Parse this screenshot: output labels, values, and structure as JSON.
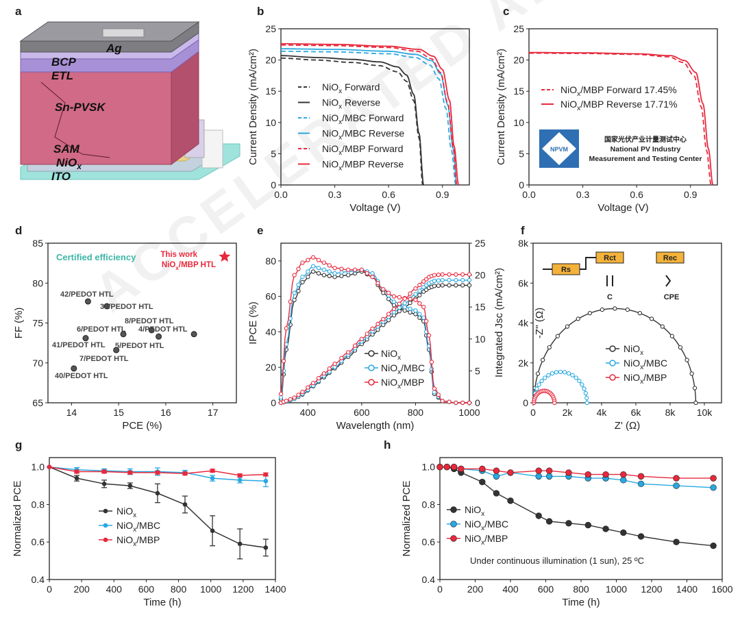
{
  "watermark": "ACCELERATED ARTICLE PREVIEW",
  "colors": {
    "black": "#333333",
    "blue": "#29a8e0",
    "red": "#e8283c",
    "teal": "#3db6a6"
  },
  "panel_a": {
    "letter": "a",
    "layers": [
      "Ag",
      "BCP",
      "ETL",
      "Sn-PVSK",
      "SAM",
      "NiOx",
      "ITO"
    ]
  },
  "cert_logo": {
    "badge": "NPVM",
    "cn": "国家光伏产业计量测试中心",
    "line1": "National PV Industry",
    "line2": "Measurement and Testing Center"
  },
  "circuit": {
    "r1": "Rs",
    "r2": "Rct",
    "r3": "Rec",
    "c1": "C",
    "c2": "CPE"
  },
  "chart_data": [
    {
      "id": "b",
      "type": "line",
      "title": "",
      "xlabel": "Voltage (V)",
      "ylabel": "Current Density (mA/cm²)",
      "xlim": [
        0,
        1.05
      ],
      "ylim": [
        0,
        25
      ],
      "xticks": [
        "0.0",
        "0.3",
        "0.6",
        "0.9"
      ],
      "yticks": [
        "0",
        "5",
        "10",
        "15",
        "20",
        "25"
      ],
      "legend_position": "center-left",
      "series": [
        {
          "name": "NiOx Forward",
          "color": "#333333",
          "dash": true,
          "x": [
            0,
            0.2,
            0.4,
            0.55,
            0.65,
            0.7,
            0.74,
            0.77,
            0.79
          ],
          "y": [
            20.3,
            20.0,
            19.6,
            19.1,
            18.1,
            16.6,
            13.5,
            7.5,
            0
          ]
        },
        {
          "name": "NiOx Reverse",
          "color": "#333333",
          "dash": false,
          "x": [
            0,
            0.2,
            0.4,
            0.55,
            0.65,
            0.7,
            0.74,
            0.77,
            0.795
          ],
          "y": [
            20.7,
            20.4,
            20.1,
            19.7,
            18.9,
            17.6,
            14.5,
            8.2,
            0
          ]
        },
        {
          "name": "NiOx/MBC Forward",
          "color": "#29a8e0",
          "dash": true,
          "x": [
            0,
            0.3,
            0.6,
            0.75,
            0.83,
            0.88,
            0.92,
            0.95,
            0.975
          ],
          "y": [
            21.4,
            21.3,
            21.0,
            20.4,
            19.2,
            17.0,
            12.2,
            5.6,
            0
          ]
        },
        {
          "name": "NiOx/MBC Reverse",
          "color": "#29a8e0",
          "dash": false,
          "x": [
            0,
            0.3,
            0.6,
            0.75,
            0.84,
            0.89,
            0.93,
            0.96,
            0.98
          ],
          "y": [
            21.8,
            21.7,
            21.4,
            20.9,
            19.9,
            17.8,
            12.8,
            5.8,
            0
          ]
        },
        {
          "name": "NiOx/MBP Forward",
          "color": "#e8283c",
          "dash": true,
          "x": [
            0,
            0.3,
            0.6,
            0.76,
            0.84,
            0.89,
            0.93,
            0.96,
            0.98
          ],
          "y": [
            22.4,
            22.3,
            22.0,
            21.4,
            20.2,
            18.0,
            13.0,
            6.0,
            0
          ]
        },
        {
          "name": "NiOx/MBP Reverse",
          "color": "#e8283c",
          "dash": false,
          "x": [
            0,
            0.3,
            0.6,
            0.77,
            0.85,
            0.9,
            0.94,
            0.965,
            0.99
          ],
          "y": [
            22.6,
            22.5,
            22.2,
            21.7,
            20.6,
            18.5,
            13.5,
            6.2,
            0
          ]
        }
      ]
    },
    {
      "id": "c",
      "type": "line",
      "title": "",
      "xlabel": "Voltage (V)",
      "ylabel": "Current Density (mA/cm²)",
      "xlim": [
        0,
        1.05
      ],
      "ylim": [
        0,
        25
      ],
      "xticks": [
        "0.0",
        "0.3",
        "0.6",
        "0.9"
      ],
      "yticks": [
        "0",
        "5",
        "10",
        "15",
        "20",
        "25"
      ],
      "legend_position": "center-left",
      "series": [
        {
          "name": "NiOx/MBP Forward 17.45%",
          "color": "#e8283c",
          "dash": true,
          "x": [
            0,
            0.3,
            0.6,
            0.78,
            0.86,
            0.92,
            0.96,
            0.99,
            1.015
          ],
          "y": [
            21.1,
            21.05,
            20.9,
            20.5,
            19.6,
            17.5,
            12.5,
            5.5,
            0
          ]
        },
        {
          "name": "NiOx/MBP Reverse 17.71%",
          "color": "#e8283c",
          "dash": false,
          "x": [
            0,
            0.3,
            0.6,
            0.79,
            0.87,
            0.93,
            0.97,
            1.0,
            1.025
          ],
          "y": [
            21.2,
            21.15,
            21.0,
            20.7,
            19.9,
            18.0,
            13.0,
            5.8,
            0
          ]
        }
      ]
    },
    {
      "id": "d",
      "type": "scatter",
      "title": "",
      "xlabel": "PCE (%)",
      "ylabel": "FF (%)",
      "xlim": [
        13.5,
        17.5
      ],
      "ylim": [
        65,
        85
      ],
      "xticks": [
        "14",
        "15",
        "16",
        "17"
      ],
      "yticks": [
        "65",
        "70",
        "75",
        "80",
        "85"
      ],
      "annotation": "Certified efficiency",
      "points": [
        {
          "x": 14.35,
          "y": 77.7,
          "label": "42/PEDOT HTL"
        },
        {
          "x": 14.75,
          "y": 77.1,
          "label": "39/PEDOT HTL"
        },
        {
          "x": 15.7,
          "y": 74.1,
          "label": "8/PEDOT HTL"
        },
        {
          "x": 15.1,
          "y": 73.6,
          "label": "6/PEDOT HTL"
        },
        {
          "x": 16.6,
          "y": 73.6,
          "label": "4/PEDOT HTL"
        },
        {
          "x": 15.85,
          "y": 73.3,
          "label": "5/PEDOT HTL"
        },
        {
          "x": 14.3,
          "y": 73.1,
          "label": "41/PEDOT HTL"
        },
        {
          "x": 14.95,
          "y": 71.6,
          "label": "7/PEDOT HTL"
        },
        {
          "x": 14.05,
          "y": 69.3,
          "label": "40/PEDOT HTL"
        }
      ],
      "highlight": {
        "x": 17.25,
        "y": 83.3,
        "label1": "This work",
        "label2": "NiOx/MBP HTL"
      }
    },
    {
      "id": "e",
      "type": "line",
      "title": "",
      "xlabel": "Wavelength (nm)",
      "ylabel": "IPCE (%)",
      "ylabel2": "Integrated Jsc (mA/cm²)",
      "xlim": [
        300,
        1000
      ],
      "ylim": [
        0,
        90
      ],
      "ylim2": [
        0,
        25
      ],
      "xticks": [
        "400",
        "600",
        "800",
        "1000"
      ],
      "yticks": [
        "0",
        "20",
        "40",
        "60",
        "80"
      ],
      "y2ticks": [
        "0",
        "5",
        "10",
        "15",
        "20",
        "25"
      ],
      "legend_position": "bottom-center",
      "series": [
        {
          "name": "NiOx",
          "color": "#333333",
          "x": [
            300,
            320,
            350,
            380,
            420,
            460,
            500,
            550,
            600,
            640,
            680,
            720,
            760,
            800,
            830,
            850,
            870,
            900,
            950,
            1000
          ],
          "y": [
            2,
            30,
            58,
            68,
            74,
            72,
            71,
            72,
            74,
            71,
            62,
            55,
            52,
            50,
            46,
            30,
            5,
            1,
            0,
            0
          ],
          "jsc_y": [
            0,
            0.2,
            0.6,
            1.3,
            2.6,
            4.0,
            5.4,
            7.2,
            9.2,
            10.7,
            12.2,
            13.7,
            15.0,
            16.3,
            17.4,
            18.0,
            18.3,
            18.4,
            18.4,
            18.4
          ]
        },
        {
          "name": "NiOx/MBC",
          "color": "#29a8e0",
          "x": [
            300,
            320,
            350,
            380,
            420,
            460,
            500,
            550,
            600,
            640,
            680,
            720,
            760,
            800,
            830,
            850,
            870,
            900,
            950,
            1000
          ],
          "y": [
            3,
            33,
            62,
            71,
            77,
            75,
            73,
            74,
            75,
            73,
            64,
            57,
            54,
            52,
            48,
            32,
            6,
            1,
            0,
            0
          ],
          "jsc_y": [
            0,
            0.2,
            0.6,
            1.4,
            2.7,
            4.2,
            5.6,
            7.5,
            9.6,
            11.2,
            12.7,
            14.2,
            15.6,
            17.0,
            18.1,
            18.7,
            19.1,
            19.2,
            19.2,
            19.2
          ]
        },
        {
          "name": "NiOx/MBP",
          "color": "#e8283c",
          "x": [
            300,
            320,
            350,
            380,
            420,
            460,
            500,
            550,
            600,
            640,
            680,
            720,
            760,
            800,
            830,
            850,
            870,
            900,
            950,
            1000
          ],
          "y": [
            5,
            42,
            72,
            79,
            82,
            79,
            76,
            75,
            75,
            71,
            64,
            60,
            59,
            58,
            54,
            38,
            8,
            1,
            0,
            0
          ],
          "jsc_y": [
            0,
            0.3,
            0.8,
            1.7,
            3.1,
            4.6,
            6.1,
            7.9,
            10.0,
            11.6,
            13.1,
            14.7,
            16.3,
            17.9,
            19.0,
            19.7,
            20.0,
            20.1,
            20.1,
            20.1
          ]
        }
      ]
    },
    {
      "id": "f",
      "type": "scatter",
      "title": "",
      "xlabel": "Z' (Ω)",
      "ylabel": "-Z'' (Ω)",
      "xlim": [
        0,
        11000
      ],
      "ylim": [
        0,
        8000
      ],
      "xticks": [
        "0",
        "2k",
        "4k",
        "6k",
        "8k",
        "10k"
      ],
      "yticks": [
        "0",
        "2k",
        "4k",
        "6k",
        "8k"
      ],
      "legend_position": "bottom-right",
      "series": [
        {
          "name": "NiOx",
          "color": "#333333",
          "r_start": 50,
          "r_end": 9500
        },
        {
          "name": "NiOx/MBC",
          "color": "#29a8e0",
          "r_start": 50,
          "r_end": 3150
        },
        {
          "name": "NiOx/MBP",
          "color": "#e8283c",
          "r_start": 50,
          "r_end": 1250
        }
      ]
    },
    {
      "id": "g",
      "type": "line",
      "title": "",
      "xlabel": "Time (h)",
      "ylabel": "Normalized PCE",
      "xlim": [
        0,
        1400
      ],
      "ylim": [
        0.4,
        1.05
      ],
      "xticks": [
        "0",
        "200",
        "400",
        "600",
        "800",
        "1000",
        "1200",
        "1400"
      ],
      "yticks": [
        "0.4",
        "0.6",
        "0.8",
        "1.0"
      ],
      "legend_position": "center-left",
      "series": [
        {
          "name": "NiOx",
          "color": "#333333",
          "x": [
            0,
            170,
            340,
            500,
            670,
            840,
            1010,
            1180,
            1340
          ],
          "y": [
            1.0,
            0.94,
            0.91,
            0.9,
            0.86,
            0.8,
            0.66,
            0.59,
            0.57
          ],
          "err": [
            0,
            0.015,
            0.02,
            0.015,
            0.05,
            0.045,
            0.08,
            0.08,
            0.045
          ]
        },
        {
          "name": "NiOx/MBC",
          "color": "#29a8e0",
          "x": [
            0,
            170,
            340,
            500,
            670,
            840,
            1010,
            1180,
            1340
          ],
          "y": [
            1.0,
            0.985,
            0.98,
            0.975,
            0.975,
            0.97,
            0.94,
            0.93,
            0.925
          ],
          "err": [
            0,
            0.012,
            0.01,
            0.015,
            0.02,
            0.012,
            0.015,
            0.015,
            0.03
          ]
        },
        {
          "name": "NiOx/MBP",
          "color": "#e8283c",
          "x": [
            0,
            170,
            340,
            500,
            670,
            840,
            1010,
            1180,
            1340
          ],
          "y": [
            1.0,
            0.975,
            0.975,
            0.97,
            0.97,
            0.965,
            0.98,
            0.955,
            0.96
          ],
          "err": [
            0,
            0.008,
            0.008,
            0.008,
            0.008,
            0.008,
            0.008,
            0.008,
            0.008
          ]
        }
      ]
    },
    {
      "id": "h",
      "type": "line",
      "title": "",
      "xlabel": "Time (h)",
      "ylabel": "Normalized PCE",
      "xlim": [
        0,
        1600
      ],
      "ylim": [
        0.4,
        1.05
      ],
      "xticks": [
        "0",
        "200",
        "400",
        "600",
        "800",
        "1000",
        "1200",
        "1400",
        "1600"
      ],
      "yticks": [
        "0.4",
        "0.6",
        "0.8",
        "1.0"
      ],
      "legend_position": "center-left",
      "annotation": "Under continuous  illumination (1 sun), 25 ºC",
      "series": [
        {
          "name": "NiOx",
          "color": "#333333",
          "x": [
            0,
            40,
            80,
            120,
            240,
            320,
            400,
            560,
            620,
            730,
            840,
            940,
            1040,
            1140,
            1340,
            1550
          ],
          "y": [
            1.0,
            1.0,
            0.99,
            0.97,
            0.92,
            0.86,
            0.82,
            0.74,
            0.71,
            0.7,
            0.69,
            0.67,
            0.65,
            0.63,
            0.6,
            0.58
          ]
        },
        {
          "name": "NiOx/MBC",
          "color": "#29a8e0",
          "x": [
            0,
            40,
            80,
            120,
            240,
            320,
            400,
            560,
            620,
            730,
            840,
            940,
            1040,
            1140,
            1340,
            1550
          ],
          "y": [
            1.0,
            1.0,
            1.0,
            0.99,
            0.98,
            0.95,
            0.97,
            0.95,
            0.95,
            0.95,
            0.94,
            0.94,
            0.93,
            0.91,
            0.9,
            0.89
          ]
        },
        {
          "name": "NiOx/MBP",
          "color": "#e8283c",
          "x": [
            0,
            40,
            80,
            120,
            240,
            320,
            400,
            560,
            620,
            730,
            840,
            940,
            1040,
            1140,
            1340,
            1550
          ],
          "y": [
            1.0,
            1.0,
            1.0,
            0.99,
            0.99,
            0.98,
            0.97,
            0.98,
            0.98,
            0.97,
            0.96,
            0.96,
            0.96,
            0.95,
            0.94,
            0.94
          ]
        }
      ]
    }
  ]
}
